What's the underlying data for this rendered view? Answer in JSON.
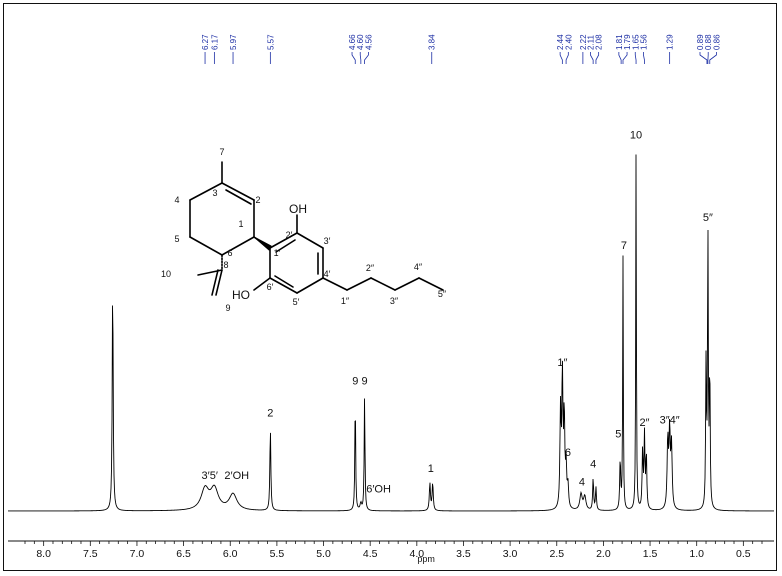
{
  "chart_data": {
    "type": "line",
    "title": "",
    "xlabel": "ppm",
    "ylabel": "",
    "xlim": [
      8.2,
      0.3
    ],
    "x_ticks": [
      "8.0",
      "7.5",
      "7.0",
      "6.5",
      "6.0",
      "5.5",
      "5.0",
      "4.5",
      "4.0",
      "3.5",
      "3.0",
      "2.5",
      "2.0",
      "1.5",
      "1.0",
      "0.5"
    ],
    "grid": false,
    "peak_list_labels": [
      "6.27",
      "6.17",
      "5.97",
      "5.57",
      "4.66",
      "4.60",
      "4.56",
      "3.84",
      "2.44",
      "2.40",
      "2.22",
      "2.11",
      "2.08",
      "1.81",
      "1.79",
      "1.65",
      "1.56",
      "1.29",
      "0.89",
      "0.88",
      "0.86"
    ],
    "spectrum_peaks": [
      {
        "ppm": 7.26,
        "height": 1.0,
        "width": 0.006
      },
      {
        "ppm": 6.27,
        "height": 0.09,
        "width": 0.05
      },
      {
        "ppm": 6.17,
        "height": 0.09,
        "width": 0.05
      },
      {
        "ppm": 5.97,
        "height": 0.07,
        "width": 0.05
      },
      {
        "ppm": 5.57,
        "height": 0.36,
        "width": 0.006
      },
      {
        "ppm": 4.66,
        "height": 0.5,
        "width": 0.005
      },
      {
        "ppm": 4.6,
        "height": 0.03,
        "width": 0.01
      },
      {
        "ppm": 4.56,
        "height": 0.5,
        "width": 0.005
      },
      {
        "ppm": 3.86,
        "height": 0.12,
        "width": 0.007
      },
      {
        "ppm": 3.83,
        "height": 0.12,
        "width": 0.007
      },
      {
        "ppm": 2.46,
        "height": 0.42,
        "width": 0.007
      },
      {
        "ppm": 2.44,
        "height": 0.58,
        "width": 0.007
      },
      {
        "ppm": 2.42,
        "height": 0.4,
        "width": 0.007
      },
      {
        "ppm": 2.4,
        "height": 0.18,
        "width": 0.007
      },
      {
        "ppm": 2.38,
        "height": 0.1,
        "width": 0.008
      },
      {
        "ppm": 2.24,
        "height": 0.07,
        "width": 0.015
      },
      {
        "ppm": 2.2,
        "height": 0.06,
        "width": 0.015
      },
      {
        "ppm": 2.11,
        "height": 0.14,
        "width": 0.006
      },
      {
        "ppm": 2.08,
        "height": 0.1,
        "width": 0.006
      },
      {
        "ppm": 1.82,
        "height": 0.22,
        "width": 0.006
      },
      {
        "ppm": 1.79,
        "height": 1.1,
        "width": 0.004
      },
      {
        "ppm": 1.65,
        "height": 1.58,
        "width": 0.004
      },
      {
        "ppm": 1.58,
        "height": 0.25,
        "width": 0.006
      },
      {
        "ppm": 1.56,
        "height": 0.32,
        "width": 0.006
      },
      {
        "ppm": 1.54,
        "height": 0.24,
        "width": 0.006
      },
      {
        "ppm": 1.31,
        "height": 0.3,
        "width": 0.008
      },
      {
        "ppm": 1.29,
        "height": 0.33,
        "width": 0.008
      },
      {
        "ppm": 1.27,
        "height": 0.27,
        "width": 0.008
      },
      {
        "ppm": 0.9,
        "height": 0.62,
        "width": 0.005
      },
      {
        "ppm": 0.88,
        "height": 1.21,
        "width": 0.005
      },
      {
        "ppm": 0.86,
        "height": 0.62,
        "width": 0.005
      }
    ],
    "assignments": [
      {
        "text": "3′5′",
        "ppm": 6.22,
        "height": 0.14
      },
      {
        "text": "2′OH",
        "ppm": 5.93,
        "height": 0.14
      },
      {
        "text": "2",
        "ppm": 5.57,
        "height": 0.41
      },
      {
        "text": "9",
        "ppm": 4.66,
        "height": 0.55
      },
      {
        "text": "9",
        "ppm": 4.56,
        "height": 0.55
      },
      {
        "text": "6′OH",
        "ppm": 4.41,
        "height": 0.08
      },
      {
        "text": "1",
        "ppm": 3.85,
        "height": 0.17
      },
      {
        "text": "1″",
        "ppm": 2.44,
        "height": 0.63
      },
      {
        "text": "6",
        "ppm": 2.38,
        "height": 0.24
      },
      {
        "text": "4",
        "ppm": 2.23,
        "height": 0.11
      },
      {
        "text": "4",
        "ppm": 2.11,
        "height": 0.19
      },
      {
        "text": "5",
        "ppm": 1.84,
        "height": 0.32
      },
      {
        "text": "7",
        "ppm": 1.78,
        "height": 1.14
      },
      {
        "text": "10",
        "ppm": 1.65,
        "height": 1.62
      },
      {
        "text": "2″",
        "ppm": 1.56,
        "height": 0.37
      },
      {
        "text": "3″4″",
        "ppm": 1.29,
        "height": 0.38
      },
      {
        "text": "5″",
        "ppm": 0.88,
        "height": 1.26
      }
    ]
  },
  "structure": {
    "oh_top": "OH",
    "oh_bottom": "HO",
    "atom_labels": [
      "7",
      "3",
      "2",
      "4",
      "1",
      "5",
      "6",
      "10",
      "8",
      "9",
      "2′",
      "3′",
      "1′",
      "4′",
      "6′",
      "5′",
      "1″",
      "2″",
      "3″",
      "4″",
      "5″"
    ]
  }
}
